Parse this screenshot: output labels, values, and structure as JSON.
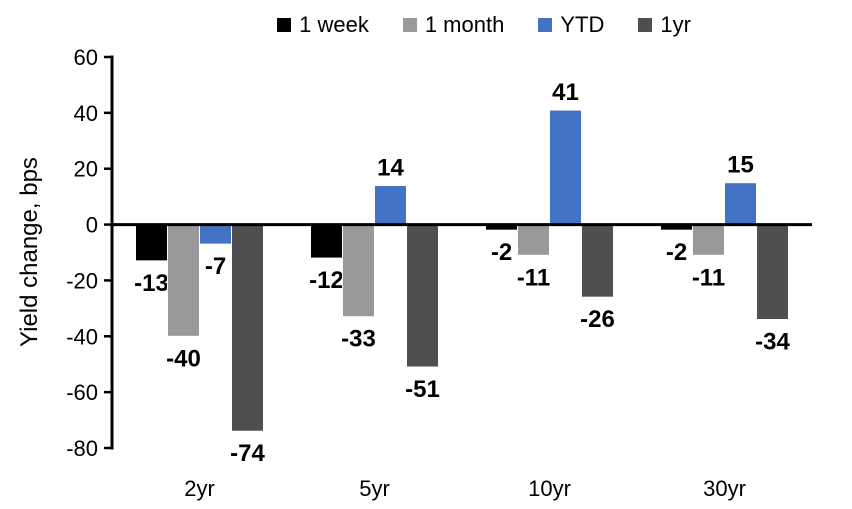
{
  "chart_data": {
    "type": "bar",
    "title": "",
    "ylabel": "Yield change, bps",
    "xlabel": "",
    "categories": [
      "2yr",
      "5yr",
      "10yr",
      "30yr"
    ],
    "series": [
      {
        "name": "1 week",
        "color": "#000000",
        "values": [
          -13,
          -12,
          -2,
          -2
        ]
      },
      {
        "name": "1 month",
        "color": "#999999",
        "values": [
          -40,
          -33,
          -11,
          -11
        ]
      },
      {
        "name": "YTD",
        "color": "#4472C4",
        "values": [
          -7,
          14,
          41,
          15
        ]
      },
      {
        "name": "1yr",
        "color": "#4F4F4F",
        "values": [
          -74,
          -51,
          -26,
          -34
        ]
      }
    ],
    "ylim": [
      -80,
      60
    ],
    "ytick_step": 20,
    "ytick_labels": [
      "60",
      "40",
      "20",
      "0",
      "-20",
      "-40",
      "-60",
      "-80"
    ],
    "grid": false,
    "legend_position": "top",
    "bar_labels": true,
    "axis_color": "#000000",
    "background": "#FFFFFF"
  }
}
